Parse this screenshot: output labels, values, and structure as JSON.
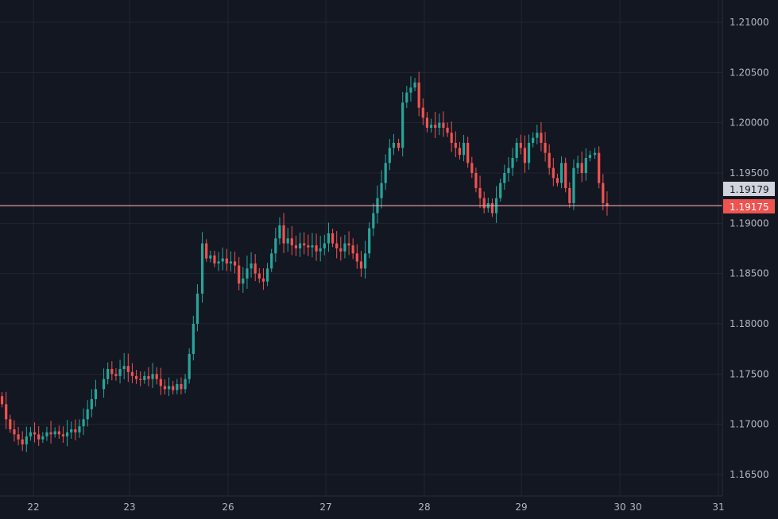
{
  "chart_data": {
    "type": "candlestick",
    "title": "",
    "xlabel": "",
    "ylabel": "",
    "ylim": [
      1.1625,
      1.2125
    ],
    "y_ticks": [
      "1.21000",
      "1.20500",
      "1.20000",
      "1.19500",
      "1.19000",
      "1.18500",
      "1.18000",
      "1.17500",
      "1.17000",
      "1.16500"
    ],
    "x_ticks": [
      "22",
      "23",
      "26",
      "27",
      "28",
      "29",
      "30",
      "30",
      "31"
    ],
    "grid": true,
    "colors": {
      "up": "#26a69a",
      "down": "#ef5350",
      "background": "#131722",
      "grid": "#232632",
      "price_line": "#f7a9a9",
      "label_gray": "#d1d4dc",
      "label_red": "#ef5350"
    },
    "price_labels": {
      "previous": "1.19179",
      "last": "1.19175"
    },
    "last_price": 1.19175,
    "previous_price": 1.19179,
    "candles_per_day": 24,
    "candle_series": [
      {
        "day": "22",
        "closes": [
          1.172,
          1.1705,
          1.1695,
          1.169,
          1.1685,
          1.168,
          1.1688,
          1.1692,
          1.169,
          1.1685,
          1.1688,
          1.1692,
          1.169,
          1.1693,
          1.169,
          1.1688,
          1.1692,
          1.1695,
          1.1692,
          1.1698,
          1.1705,
          1.1715,
          1.1725,
          1.1735
        ]
      },
      {
        "day": "23",
        "closes": [
          1.1745,
          1.1755,
          1.175,
          1.1748,
          1.1755,
          1.1758,
          1.1752,
          1.1748,
          1.1745,
          1.1744,
          1.1748,
          1.1745,
          1.175,
          1.1745,
          1.1738,
          1.1735,
          1.1738,
          1.1734,
          1.174,
          1.1735,
          1.1745,
          1.177,
          1.18,
          1.183
        ]
      },
      {
        "day": "26",
        "closes": [
          1.188,
          1.1865,
          1.1868,
          1.186,
          1.1862,
          1.1865,
          1.186,
          1.1862,
          1.1858,
          1.184,
          1.1845,
          1.1855,
          1.186,
          1.185,
          1.1845,
          1.1842,
          1.1855,
          1.187,
          1.1885,
          1.1898,
          1.188,
          1.1885,
          1.1878,
          1.1875
        ]
      },
      {
        "day": "27",
        "closes": [
          1.188,
          1.1878,
          1.1876,
          1.1878,
          1.1872,
          1.1875,
          1.188,
          1.189,
          1.188,
          1.1875,
          1.1872,
          1.188,
          1.1878,
          1.187,
          1.1862,
          1.1855,
          1.187,
          1.1895,
          1.191,
          1.1925,
          1.194,
          1.196,
          1.1975,
          1.198
        ]
      },
      {
        "day": "28",
        "closes": [
          1.1975,
          1.202,
          1.203,
          1.2035,
          1.204,
          1.2015,
          1.2005,
          1.1995,
          1.1998,
          1.1995,
          1.2,
          1.1995,
          1.199,
          1.198,
          1.1975,
          1.1968,
          1.198,
          1.196,
          1.195,
          1.1935,
          1.1925,
          1.1915,
          1.192,
          1.191
        ]
      },
      {
        "day": "29",
        "closes": [
          1.1925,
          1.194,
          1.195,
          1.1955,
          1.1965,
          1.198,
          1.1975,
          1.196,
          1.198,
          1.1985,
          1.199,
          1.198,
          1.197,
          1.1955,
          1.1945,
          1.194,
          1.196,
          1.1935,
          1.192,
          1.1955,
          1.196,
          1.195,
          1.1965,
          1.1968
        ]
      },
      {
        "day": "30",
        "closes": [
          1.197,
          1.194,
          1.192,
          1.1917
        ]
      }
    ]
  }
}
